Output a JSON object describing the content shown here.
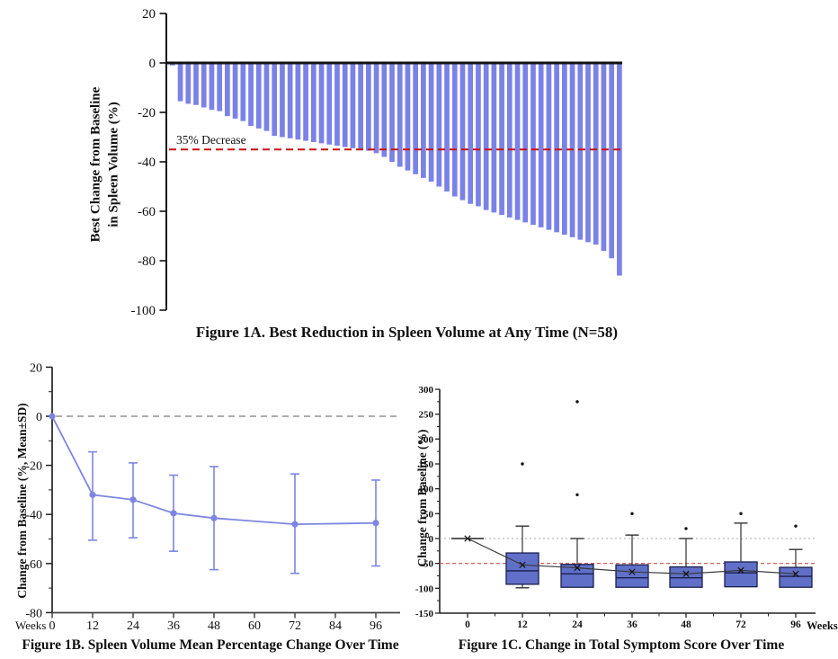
{
  "page": {
    "background": "#ffffff"
  },
  "chart_data": [
    {
      "id": "figure-1a",
      "type": "bar",
      "subtype": "waterfall",
      "title": "Figure 1A. Best Reduction in Spleen Volume at Any Time (N=58)",
      "ylabel": "Best Change from Baseline in Spleen Volume (%)",
      "ylabel_lines": [
        "Best Change from Baseline",
        "in Spleen Volume (%)"
      ],
      "n": 58,
      "ylim": [
        -100,
        20
      ],
      "yticks": [
        20,
        0,
        -20,
        -40,
        -60,
        -80,
        -100
      ],
      "grid": false,
      "bar_color": "#7a82e8",
      "zero_line_color": "#111111",
      "reference_line": {
        "value": -35,
        "label": "35% Decrease",
        "color": "#cc1111",
        "style": "dashed"
      },
      "values": [
        -1,
        -15.5,
        -16.5,
        -17,
        -18,
        -19,
        -19.5,
        -21.5,
        -22.5,
        -23.5,
        -25.5,
        -26.5,
        -27.5,
        -29.5,
        -30,
        -30.5,
        -31,
        -31.5,
        -32,
        -32.5,
        -33,
        -33.5,
        -34,
        -34.5,
        -35,
        -35.5,
        -36.5,
        -38,
        -40,
        -42,
        -43.5,
        -45,
        -46.5,
        -48,
        -50,
        -52,
        -54,
        -55.5,
        -57,
        -58,
        -59.5,
        -60.5,
        -61.5,
        -62.5,
        -63.5,
        -64.5,
        -65.5,
        -66.5,
        -67.5,
        -68.5,
        -69.5,
        -70.5,
        -71.5,
        -72.5,
        -73.5,
        -76,
        -79,
        -86
      ]
    },
    {
      "id": "figure-1b",
      "type": "line",
      "title": "Figure 1B. Spleen Volume Mean Percentage Change Over Time",
      "ylabel": "Change from Baseline (%, Mean±SD)",
      "xlabel": "Weeks",
      "ylim": [
        -80,
        20
      ],
      "yticks": [
        20,
        0,
        -20,
        -40,
        -60,
        -80
      ],
      "xticks": [
        0,
        12,
        24,
        36,
        48,
        60,
        72,
        84,
        96
      ],
      "grid": false,
      "line_color": "#7c86e2",
      "zero_line": {
        "value": 0,
        "color": "#909090",
        "style": "dashed"
      },
      "x": [
        0,
        12,
        24,
        36,
        48,
        72,
        96
      ],
      "mean": [
        0,
        -32,
        -34,
        -39.5,
        -41.5,
        -44,
        -43.5
      ],
      "sd_upper": [
        0,
        -14.5,
        -19,
        -24,
        -20.5,
        -23.5,
        -26
      ],
      "sd_lower": [
        0,
        -50.5,
        -49.5,
        -55,
        -62.5,
        -64,
        -61
      ]
    },
    {
      "id": "figure-1c",
      "type": "box",
      "title": "Figure 1C. Change in Total Symptom Score Over Time",
      "ylabel": "Change from Baseline (%)",
      "xlabel": "Weeks",
      "ylim": [
        -150,
        300
      ],
      "yticks": [
        300,
        250,
        200,
        150,
        100,
        50,
        0,
        -50,
        -100,
        -150
      ],
      "categories": [
        0,
        12,
        24,
        36,
        48,
        72,
        96
      ],
      "grid": false,
      "box_fill": "#6070c8",
      "box_border": "#1a1f4e",
      "mean_line_color": "#3a3a3a",
      "reference_lines": [
        {
          "value": 0,
          "color": "#a8a8a8",
          "style": "dotted"
        },
        {
          "value": -50,
          "color": "#d84848",
          "style": "dashed"
        }
      ],
      "boxes": [
        {
          "week": 0,
          "q1": 0,
          "q3": 0,
          "median": 0,
          "mean": 0,
          "whisker_low": null,
          "whisker_high": null,
          "outliers": []
        },
        {
          "week": 12,
          "q1": -92,
          "q3": -29,
          "median": -65,
          "mean": -53,
          "whisker_low": -99,
          "whisker_high": 25,
          "outliers": [
            150
          ]
        },
        {
          "week": 24,
          "q1": -98,
          "q3": -52,
          "median": -71,
          "mean": -59,
          "whisker_low": null,
          "whisker_high": 0,
          "outliers": [
            88,
            275
          ]
        },
        {
          "week": 36,
          "q1": -98,
          "q3": -53,
          "median": -79,
          "mean": -67,
          "whisker_low": null,
          "whisker_high": 7,
          "outliers": [
            50
          ]
        },
        {
          "week": 48,
          "q1": -98,
          "q3": -57,
          "median": -79,
          "mean": -71,
          "whisker_low": null,
          "whisker_high": 0,
          "outliers": [
            20
          ]
        },
        {
          "week": 72,
          "q1": -97,
          "q3": -47,
          "median": -69,
          "mean": -64,
          "whisker_low": null,
          "whisker_high": 31,
          "outliers": [
            50
          ]
        },
        {
          "week": 96,
          "q1": -98,
          "q3": -58,
          "median": -76,
          "mean": -71,
          "whisker_low": null,
          "whisker_high": -22,
          "outliers": [
            25
          ]
        }
      ]
    }
  ]
}
